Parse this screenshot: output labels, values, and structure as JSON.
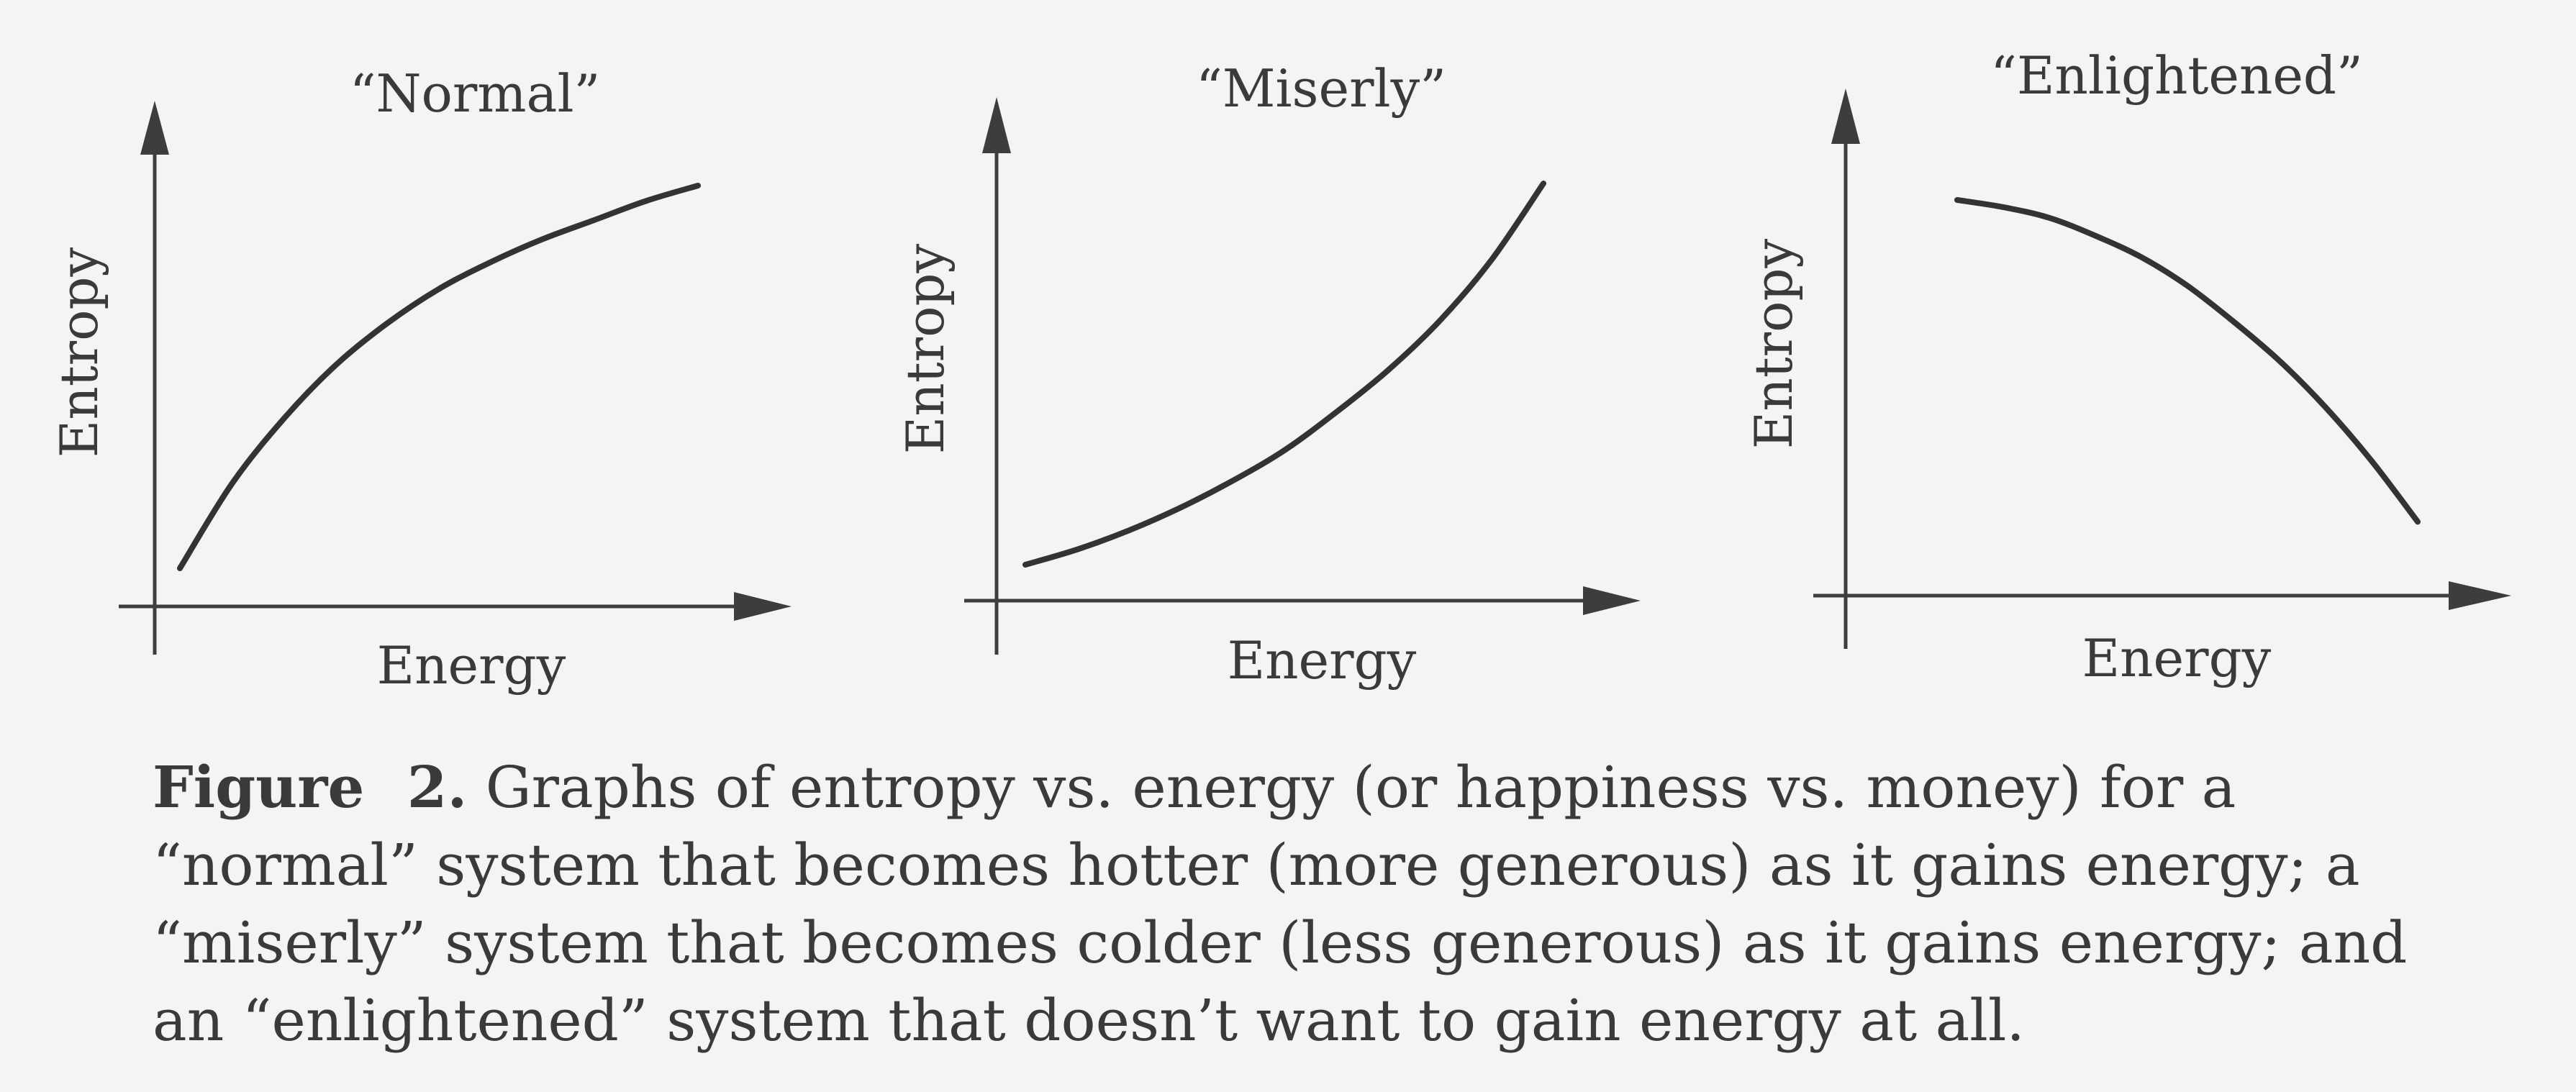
{
  "chart_data": [
    {
      "type": "line",
      "title": "“Normal”",
      "xlabel": "Energy",
      "ylabel": "Entropy",
      "shape": "concave increasing",
      "x": [
        0.0,
        0.1,
        0.2,
        0.3,
        0.4,
        0.5,
        0.6,
        0.7,
        0.8,
        0.9,
        1.0
      ],
      "series": [
        {
          "values": [
            0.0,
            0.22,
            0.39,
            0.53,
            0.64,
            0.73,
            0.8,
            0.86,
            0.91,
            0.96,
            1.0
          ]
        }
      ],
      "grid": false,
      "legend": "none"
    },
    {
      "type": "line",
      "title": "“Miserly”",
      "xlabel": "Energy",
      "ylabel": "Entropy",
      "shape": "convex increasing",
      "x": [
        0.0,
        0.1,
        0.2,
        0.3,
        0.4,
        0.5,
        0.6,
        0.7,
        0.8,
        0.9,
        1.0
      ],
      "series": [
        {
          "values": [
            0.0,
            0.04,
            0.09,
            0.15,
            0.22,
            0.3,
            0.4,
            0.51,
            0.64,
            0.8,
            1.0
          ]
        }
      ],
      "grid": false,
      "legend": "none"
    },
    {
      "type": "line",
      "title": "“Enlightened”",
      "xlabel": "Energy",
      "ylabel": "Entropy",
      "shape": "concave decreasing",
      "x": [
        0.0,
        0.1,
        0.2,
        0.3,
        0.4,
        0.5,
        0.6,
        0.7,
        0.8,
        0.9,
        1.0
      ],
      "series": [
        {
          "values": [
            1.0,
            0.98,
            0.95,
            0.9,
            0.84,
            0.76,
            0.66,
            0.55,
            0.42,
            0.27,
            0.1
          ]
        }
      ],
      "grid": false,
      "legend": "none"
    }
  ],
  "caption": {
    "label": "Figure",
    "number": "2.",
    "text": "Graphs of entropy vs. energy (or happiness vs. money) for a “normal” system that becomes hotter (more generous) as it gains energy; a “miserly” system that becomes colder (less generous) as it gains energy; and an “enlightened” system that doesn’t want to gain energy at all."
  }
}
